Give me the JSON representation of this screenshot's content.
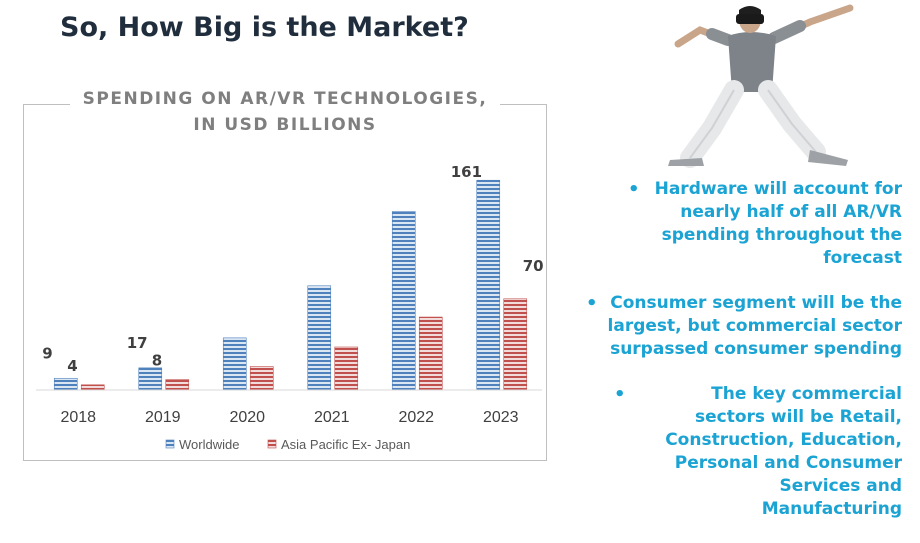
{
  "slide": {
    "title": "So, How Big is the Market?"
  },
  "chart_title_lines": [
    "SPENDING ON AR/VR TECHNOLOGIES,",
    "IN USD BILLIONS"
  ],
  "chart_data": {
    "type": "bar",
    "title": "SPENDING ON AR/VR TECHNOLOGIES, IN USD BILLIONS",
    "categories": [
      "2018",
      "2019",
      "2020",
      "2021",
      "2022",
      "2023"
    ],
    "series": [
      {
        "name": "Worldwide",
        "values": [
          9,
          17,
          40,
          80,
          137,
          161
        ],
        "color": "#4f81bd",
        "data_labels": {
          "0": "9",
          "1": "17",
          "5": "161"
        }
      },
      {
        "name": "Asia Pacific Ex- Japan",
        "values": [
          4,
          8,
          18,
          33,
          56,
          70
        ],
        "color": "#c0504d",
        "data_labels": {
          "0": "4",
          "1": "8",
          "5": "70"
        }
      }
    ],
    "ylim": [
      0,
      175
    ],
    "grid": false,
    "legend": "bottom"
  },
  "bullets": [
    "Hardware will account for nearly half of all AR/VR spending throughout the forecast",
    "Consumer segment will be the largest, but commercial sector surpassed consumer spending",
    "The key commercial sectors will be Retail, Construction, Education, Personal and Consumer Services and Manufacturing"
  ],
  "bullet_symbol": "•",
  "colors": {
    "title": "#1f2d3d",
    "bullet_text": "#1aa3d3",
    "chart_title": "#7f7f7f"
  }
}
